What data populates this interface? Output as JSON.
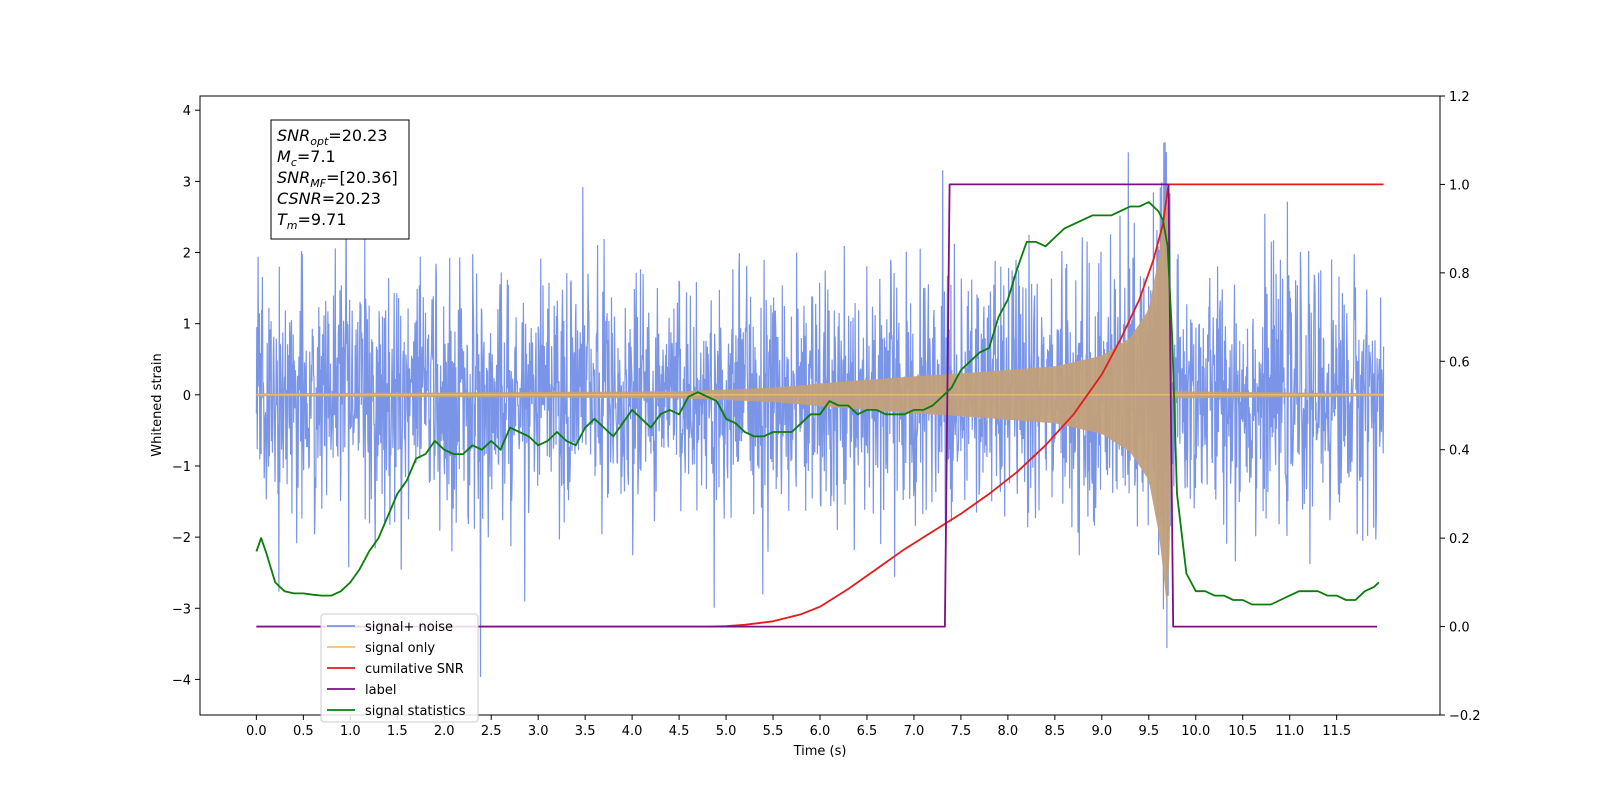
{
  "chart_data": {
    "type": "line",
    "xlabel": "Time (s)",
    "ylabel": "Whitened strain",
    "xlim": [
      -0.6,
      12.6
    ],
    "ylim": [
      -4.5,
      4.2
    ],
    "y2lim": [
      -0.2,
      1.2
    ],
    "xticks": [
      0.0,
      0.5,
      1.0,
      1.5,
      2.0,
      2.5,
      3.0,
      3.5,
      4.0,
      4.5,
      5.0,
      5.5,
      6.0,
      6.5,
      7.0,
      7.5,
      8.0,
      8.5,
      9.0,
      9.5,
      10.0,
      10.5,
      11.0,
      11.5
    ],
    "xtick_labels": [
      "0.0",
      "0.5",
      "1.0",
      "1.5",
      "2.0",
      "2.5",
      "3.0",
      "3.5",
      "4.0",
      "4.5",
      "5.0",
      "5.5",
      "6.0",
      "6.5",
      "7.0",
      "7.5",
      "8.0",
      "8.5",
      "9.0",
      "9.5",
      "10.0",
      "10.5",
      "11.0",
      "11.5"
    ],
    "yticks": [
      -4,
      -3,
      -2,
      -1,
      0,
      1,
      2,
      3,
      4
    ],
    "ytick_labels": [
      "−4",
      "−3",
      "−2",
      "−1",
      "0",
      "1",
      "2",
      "3",
      "4"
    ],
    "y2ticks": [
      -0.2,
      0.0,
      0.2,
      0.4,
      0.6,
      0.8,
      1.0,
      1.2
    ],
    "y2tick_labels": [
      "−0.2",
      "0.0",
      "0.2",
      "0.4",
      "0.6",
      "0.8",
      "1.0",
      "1.2"
    ],
    "grid": false,
    "legend_position": "lower-left",
    "annotation_lines": [
      {
        "main": "SNR",
        "sub": "opt",
        "value": "=20.23"
      },
      {
        "main": "M",
        "sub": "c",
        "value": "=7.1"
      },
      {
        "main": "SNR",
        "sub": "MF",
        "value": "=[20.36]"
      },
      {
        "main": "CSNR",
        "sub": "",
        "value": "=20.23"
      },
      {
        "main": "T",
        "sub": "m",
        "value": "=9.71"
      }
    ],
    "series": [
      {
        "name": "signal+ noise",
        "axis": "left",
        "color": "#7a94e8",
        "description_values": {
          "time_range": [
            0.0,
            12.0
          ],
          "typical_amplitude": 1.0,
          "peak_range": [
            -4.1,
            3.8
          ]
        }
      },
      {
        "name": "signal only",
        "axis": "left",
        "color": "#f5b041",
        "fill_color": "#c2a07a",
        "merger_time": 9.71,
        "envelope": {
          "t": [
            0.0,
            4.5,
            5.5,
            6.0,
            6.5,
            7.0,
            7.5,
            8.0,
            8.5,
            9.0,
            9.3,
            9.5,
            9.6,
            9.65,
            9.68,
            9.71,
            9.75,
            12.0
          ],
          "amp": [
            0.02,
            0.05,
            0.1,
            0.16,
            0.21,
            0.26,
            0.3,
            0.35,
            0.4,
            0.55,
            0.8,
            1.2,
            1.9,
            2.4,
            2.9,
            3.0,
            0.05,
            0.02
          ]
        }
      },
      {
        "name": "cumilative SNR",
        "axis": "right",
        "color": "#e41a1c",
        "x": [
          0.0,
          4.8,
          5.0,
          5.2,
          5.5,
          5.8,
          6.0,
          6.3,
          6.6,
          6.9,
          7.2,
          7.5,
          7.8,
          8.1,
          8.4,
          8.7,
          9.0,
          9.2,
          9.4,
          9.55,
          9.65,
          9.71,
          10.0,
          11.0,
          12.0
        ],
        "values": [
          0.0,
          0.0,
          0.001,
          0.004,
          0.012,
          0.028,
          0.045,
          0.085,
          0.13,
          0.175,
          0.215,
          0.255,
          0.3,
          0.35,
          0.41,
          0.48,
          0.57,
          0.65,
          0.74,
          0.83,
          0.91,
          1.0,
          1.0,
          1.0,
          1.0
        ]
      },
      {
        "name": "label",
        "axis": "right",
        "color": "#7a1083",
        "x": [
          0.0,
          7.33,
          7.38,
          9.71,
          9.76,
          11.93
        ],
        "values": [
          0.0,
          0.0,
          1.0,
          1.0,
          0.0,
          0.0
        ]
      },
      {
        "name": "signal statistics",
        "axis": "right",
        "color": "#0a7d0a",
        "x": [
          0.0,
          0.05,
          0.1,
          0.2,
          0.3,
          0.4,
          0.5,
          0.6,
          0.7,
          0.8,
          0.9,
          1.0,
          1.1,
          1.2,
          1.3,
          1.4,
          1.5,
          1.6,
          1.7,
          1.8,
          1.9,
          2.0,
          2.1,
          2.2,
          2.3,
          2.4,
          2.5,
          2.6,
          2.7,
          2.8,
          2.9,
          3.0,
          3.1,
          3.2,
          3.3,
          3.4,
          3.5,
          3.6,
          3.7,
          3.8,
          3.9,
          4.0,
          4.1,
          4.2,
          4.3,
          4.4,
          4.5,
          4.6,
          4.7,
          4.8,
          4.9,
          5.0,
          5.1,
          5.2,
          5.3,
          5.4,
          5.5,
          5.6,
          5.7,
          5.8,
          5.9,
          6.0,
          6.1,
          6.2,
          6.3,
          6.4,
          6.5,
          6.6,
          6.7,
          6.8,
          6.9,
          7.0,
          7.1,
          7.2,
          7.3,
          7.4,
          7.5,
          7.6,
          7.7,
          7.8,
          7.9,
          8.0,
          8.1,
          8.2,
          8.3,
          8.4,
          8.5,
          8.6,
          8.7,
          8.8,
          8.9,
          9.0,
          9.1,
          9.2,
          9.3,
          9.4,
          9.5,
          9.6,
          9.65,
          9.7,
          9.75,
          9.8,
          9.9,
          10.0,
          10.1,
          10.2,
          10.3,
          10.4,
          10.5,
          10.6,
          10.7,
          10.8,
          10.9,
          11.0,
          11.1,
          11.2,
          11.3,
          11.4,
          11.5,
          11.6,
          11.7,
          11.8,
          11.9,
          11.95
        ],
        "values": [
          0.17,
          0.2,
          0.17,
          0.1,
          0.08,
          0.075,
          0.075,
          0.072,
          0.07,
          0.07,
          0.08,
          0.1,
          0.13,
          0.17,
          0.2,
          0.25,
          0.3,
          0.33,
          0.38,
          0.39,
          0.42,
          0.4,
          0.39,
          0.39,
          0.41,
          0.4,
          0.42,
          0.4,
          0.45,
          0.44,
          0.43,
          0.41,
          0.42,
          0.44,
          0.42,
          0.41,
          0.45,
          0.47,
          0.45,
          0.43,
          0.46,
          0.49,
          0.47,
          0.45,
          0.48,
          0.49,
          0.48,
          0.52,
          0.53,
          0.52,
          0.51,
          0.47,
          0.46,
          0.44,
          0.43,
          0.43,
          0.44,
          0.44,
          0.44,
          0.46,
          0.48,
          0.48,
          0.51,
          0.5,
          0.5,
          0.48,
          0.49,
          0.49,
          0.48,
          0.48,
          0.48,
          0.49,
          0.49,
          0.5,
          0.52,
          0.54,
          0.58,
          0.6,
          0.62,
          0.63,
          0.7,
          0.74,
          0.81,
          0.87,
          0.87,
          0.86,
          0.88,
          0.9,
          0.91,
          0.92,
          0.93,
          0.93,
          0.93,
          0.94,
          0.95,
          0.95,
          0.96,
          0.94,
          0.92,
          0.86,
          0.65,
          0.3,
          0.12,
          0.08,
          0.08,
          0.07,
          0.07,
          0.06,
          0.06,
          0.05,
          0.05,
          0.05,
          0.06,
          0.07,
          0.08,
          0.08,
          0.08,
          0.07,
          0.07,
          0.06,
          0.06,
          0.08,
          0.09,
          0.1
        ]
      }
    ],
    "legend_entries": [
      {
        "label": "signal+ noise",
        "color": "#7a94e8"
      },
      {
        "label": "signal only",
        "color": "#f5c26b"
      },
      {
        "label": "cumilative SNR",
        "color": "#e41a1c"
      },
      {
        "label": "label",
        "color": "#7a1083"
      },
      {
        "label": "signal statistics",
        "color": "#0a7d0a"
      }
    ]
  }
}
